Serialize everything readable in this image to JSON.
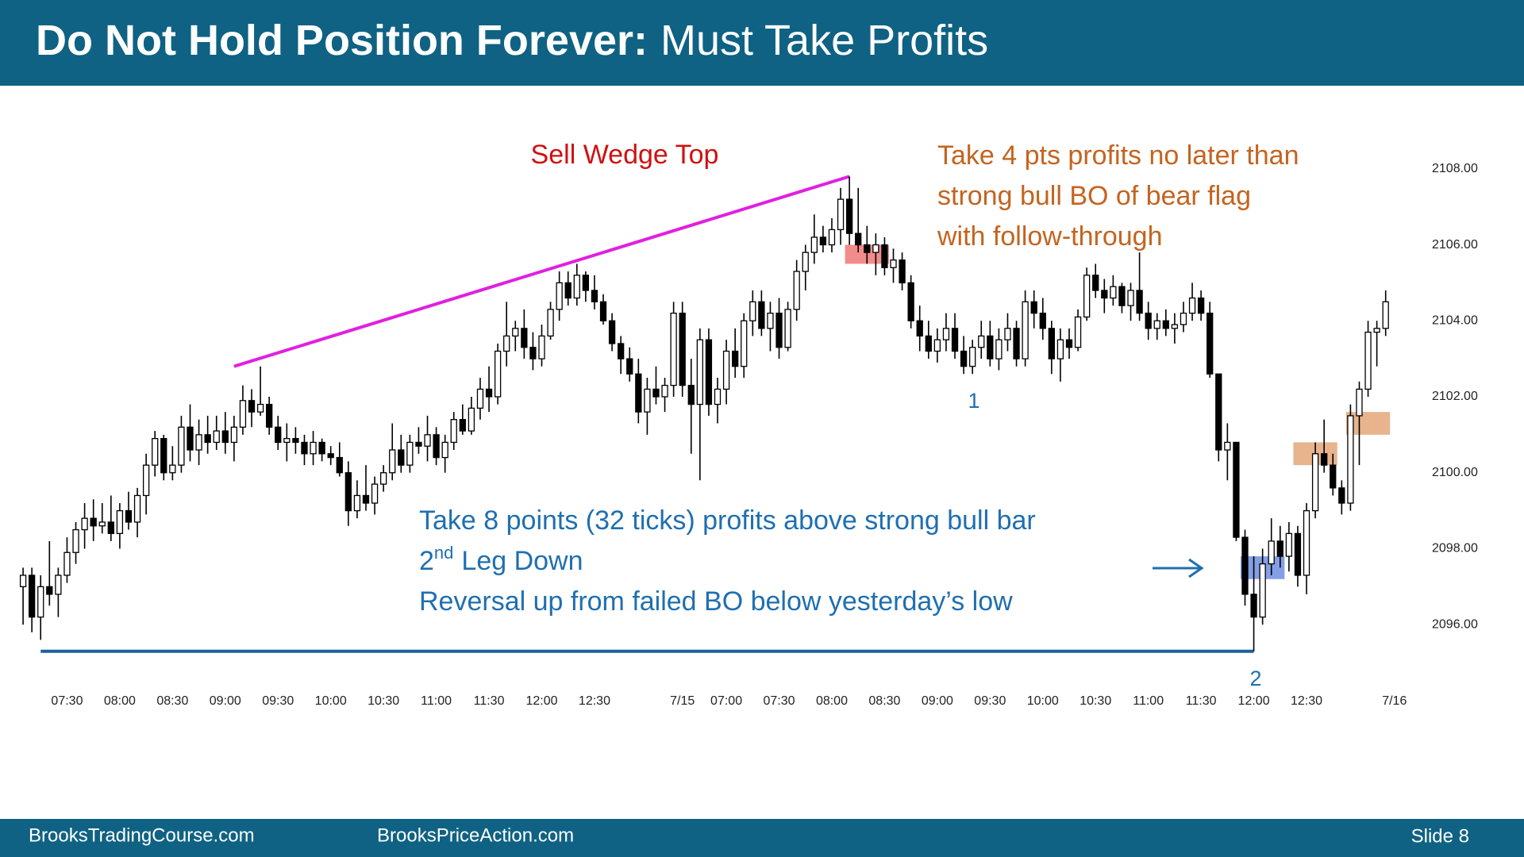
{
  "header": {
    "title_bold": "Do Not Hold Position Forever:",
    "title_rest": "Must Take Profits"
  },
  "footer": {
    "site1": "BrooksTradingCourse.com",
    "site2": "BrooksPriceAction.com",
    "slide": "Slide 8"
  },
  "chart_data": {
    "type": "candlestick",
    "ohlc": [
      [
        2097.0,
        2097.5,
        2096.0,
        2097.3
      ],
      [
        2097.3,
        2097.5,
        2095.8,
        2096.2
      ],
      [
        2096.2,
        2097.3,
        2095.6,
        2097.0
      ],
      [
        2097.0,
        2098.2,
        2096.5,
        2096.8
      ],
      [
        2096.8,
        2097.5,
        2096.2,
        2097.3
      ],
      [
        2097.3,
        2098.3,
        2097.1,
        2097.9
      ],
      [
        2097.9,
        2098.7,
        2097.6,
        2098.5
      ],
      [
        2098.5,
        2099.2,
        2098.0,
        2098.8
      ],
      [
        2098.8,
        2099.3,
        2098.2,
        2098.6
      ],
      [
        2098.6,
        2099.2,
        2098.4,
        2098.7
      ],
      [
        2098.7,
        2099.4,
        2098.2,
        2098.4
      ],
      [
        2098.4,
        2099.2,
        2098.0,
        2099.0
      ],
      [
        2099.0,
        2099.5,
        2098.5,
        2098.7
      ],
      [
        2098.7,
        2099.6,
        2098.3,
        2099.4
      ],
      [
        2099.4,
        2100.5,
        2098.9,
        2100.2
      ],
      [
        2100.2,
        2101.1,
        2099.9,
        2100.9
      ],
      [
        2100.9,
        2101.0,
        2099.8,
        2100.0
      ],
      [
        2100.0,
        2100.7,
        2099.8,
        2100.2
      ],
      [
        2100.2,
        2101.5,
        2100.0,
        2101.2
      ],
      [
        2101.2,
        2101.8,
        2100.3,
        2100.6
      ],
      [
        2100.6,
        2101.4,
        2100.2,
        2101.0
      ],
      [
        2101.0,
        2101.5,
        2100.5,
        2100.8
      ],
      [
        2100.8,
        2101.5,
        2100.6,
        2101.1
      ],
      [
        2101.1,
        2101.6,
        2100.5,
        2100.8
      ],
      [
        2100.8,
        2101.5,
        2100.3,
        2101.2
      ],
      [
        2101.2,
        2102.3,
        2101.0,
        2101.9
      ],
      [
        2101.9,
        2102.2,
        2101.2,
        2101.6
      ],
      [
        2101.6,
        2102.8,
        2101.5,
        2101.8
      ],
      [
        2101.8,
        2102.0,
        2101.0,
        2101.2
      ],
      [
        2101.2,
        2101.5,
        2100.6,
        2100.8
      ],
      [
        2100.8,
        2101.3,
        2100.3,
        2100.9
      ],
      [
        2100.9,
        2101.2,
        2100.5,
        2100.8
      ],
      [
        2100.8,
        2101.0,
        2100.2,
        2100.5
      ],
      [
        2100.5,
        2101.1,
        2100.2,
        2100.8
      ],
      [
        2100.8,
        2100.9,
        2100.3,
        2100.5
      ],
      [
        2100.5,
        2100.7,
        2100.2,
        2100.4
      ],
      [
        2100.4,
        2100.8,
        2099.9,
        2100.0
      ],
      [
        2100.0,
        2100.3,
        2098.6,
        2099.0
      ],
      [
        2099.0,
        2099.8,
        2098.8,
        2099.4
      ],
      [
        2099.4,
        2100.2,
        2099.0,
        2099.2
      ],
      [
        2099.2,
        2099.9,
        2098.9,
        2099.7
      ],
      [
        2099.7,
        2100.2,
        2099.5,
        2100.0
      ],
      [
        2100.0,
        2101.3,
        2099.8,
        2100.6
      ],
      [
        2100.6,
        2101.0,
        2100.0,
        2100.2
      ],
      [
        2100.2,
        2101.0,
        2100.0,
        2100.8
      ],
      [
        2100.8,
        2101.2,
        2100.5,
        2100.7
      ],
      [
        2100.7,
        2101.5,
        2100.3,
        2101.0
      ],
      [
        2101.0,
        2101.2,
        2100.2,
        2100.4
      ],
      [
        2100.4,
        2101.0,
        2100.0,
        2100.8
      ],
      [
        2100.8,
        2101.6,
        2100.6,
        2101.4
      ],
      [
        2101.4,
        2101.8,
        2101.0,
        2101.1
      ],
      [
        2101.1,
        2102.0,
        2101.0,
        2101.7
      ],
      [
        2101.7,
        2102.5,
        2101.4,
        2102.2
      ],
      [
        2102.2,
        2102.8,
        2101.6,
        2102.0
      ],
      [
        2102.0,
        2103.4,
        2101.8,
        2103.2
      ],
      [
        2103.2,
        2104.5,
        2102.8,
        2103.6
      ],
      [
        2103.6,
        2104.0,
        2103.2,
        2103.8
      ],
      [
        2103.8,
        2104.3,
        2103.0,
        2103.3
      ],
      [
        2103.3,
        2103.7,
        2102.7,
        2103.0
      ],
      [
        2103.0,
        2103.9,
        2102.8,
        2103.6
      ],
      [
        2103.6,
        2104.5,
        2103.5,
        2104.3
      ],
      [
        2104.3,
        2105.3,
        2104.0,
        2105.0
      ],
      [
        2105.0,
        2105.3,
        2104.4,
        2104.6
      ],
      [
        2104.6,
        2105.5,
        2104.4,
        2105.2
      ],
      [
        2105.2,
        2105.3,
        2104.5,
        2104.8
      ],
      [
        2104.8,
        2105.2,
        2104.3,
        2104.5
      ],
      [
        2104.5,
        2104.7,
        2103.9,
        2104.0
      ],
      [
        2104.0,
        2104.2,
        2103.2,
        2103.4
      ],
      [
        2103.4,
        2103.6,
        2102.6,
        2103.0
      ],
      [
        2103.0,
        2103.3,
        2102.4,
        2102.6
      ],
      [
        2102.6,
        2103.0,
        2101.3,
        2101.6
      ],
      [
        2101.6,
        2102.5,
        2101.0,
        2102.2
      ],
      [
        2102.2,
        2102.8,
        2101.8,
        2102.0
      ],
      [
        2102.0,
        2102.5,
        2101.6,
        2102.3
      ],
      [
        2102.3,
        2104.5,
        2102.0,
        2104.2
      ],
      [
        2104.2,
        2104.5,
        2102.0,
        2102.3
      ],
      [
        2102.3,
        2103.0,
        2100.5,
        2101.8
      ],
      [
        2101.8,
        2103.8,
        2099.8,
        2103.5
      ],
      [
        2103.5,
        2103.8,
        2101.5,
        2101.8
      ],
      [
        2101.8,
        2102.5,
        2101.3,
        2102.2
      ],
      [
        2102.2,
        2103.5,
        2101.8,
        2103.2
      ],
      [
        2103.2,
        2103.8,
        2102.5,
        2102.8
      ],
      [
        2102.8,
        2104.2,
        2102.5,
        2104.0
      ],
      [
        2104.0,
        2104.8,
        2103.6,
        2104.5
      ],
      [
        2104.5,
        2104.8,
        2103.6,
        2103.8
      ],
      [
        2103.8,
        2104.5,
        2103.2,
        2104.2
      ],
      [
        2104.2,
        2104.6,
        2103.0,
        2103.3
      ],
      [
        2103.3,
        2104.5,
        2103.2,
        2104.3
      ],
      [
        2104.3,
        2105.6,
        2104.0,
        2105.3
      ],
      [
        2105.3,
        2106.0,
        2104.8,
        2105.8
      ],
      [
        2105.8,
        2106.8,
        2105.5,
        2106.2
      ],
      [
        2106.2,
        2106.5,
        2105.8,
        2106.0
      ],
      [
        2106.0,
        2106.7,
        2105.8,
        2106.4
      ],
      [
        2106.4,
        2107.5,
        2106.0,
        2107.2
      ],
      [
        2107.2,
        2107.8,
        2106.0,
        2106.3
      ],
      [
        2106.3,
        2107.5,
        2105.8,
        2106.0
      ],
      [
        2106.0,
        2106.5,
        2105.5,
        2105.8
      ],
      [
        2105.8,
        2106.3,
        2105.2,
        2106.0
      ],
      [
        2106.0,
        2106.2,
        2105.2,
        2105.4
      ],
      [
        2105.4,
        2105.9,
        2105.0,
        2105.6
      ],
      [
        2105.6,
        2105.8,
        2104.8,
        2105.0
      ],
      [
        2105.0,
        2105.2,
        2103.8,
        2104.0
      ],
      [
        2104.0,
        2104.4,
        2103.2,
        2103.6
      ],
      [
        2103.6,
        2104.0,
        2103.0,
        2103.2
      ],
      [
        2103.2,
        2103.8,
        2102.9,
        2103.5
      ],
      [
        2103.5,
        2104.2,
        2103.2,
        2103.8
      ],
      [
        2103.8,
        2104.2,
        2103.0,
        2103.2
      ],
      [
        2103.2,
        2103.6,
        2102.6,
        2102.8
      ],
      [
        2102.8,
        2103.5,
        2102.6,
        2103.3
      ],
      [
        2103.3,
        2104.0,
        2103.0,
        2103.6
      ],
      [
        2103.6,
        2104.0,
        2102.8,
        2103.0
      ],
      [
        2103.0,
        2103.8,
        2102.7,
        2103.5
      ],
      [
        2103.5,
        2104.2,
        2103.2,
        2103.8
      ],
      [
        2103.8,
        2104.0,
        2102.8,
        2103.0
      ],
      [
        2103.0,
        2104.8,
        2102.8,
        2104.5
      ],
      [
        2104.5,
        2104.8,
        2103.8,
        2104.2
      ],
      [
        2104.2,
        2104.6,
        2103.5,
        2103.8
      ],
      [
        2103.8,
        2104.0,
        2102.6,
        2103.0
      ],
      [
        2103.0,
        2103.8,
        2102.4,
        2103.5
      ],
      [
        2103.5,
        2103.8,
        2103.0,
        2103.3
      ],
      [
        2103.3,
        2104.3,
        2103.2,
        2104.1
      ],
      [
        2104.1,
        2105.4,
        2104.0,
        2105.2
      ],
      [
        2105.2,
        2105.5,
        2104.6,
        2104.8
      ],
      [
        2104.8,
        2105.1,
        2104.2,
        2104.6
      ],
      [
        2104.6,
        2105.2,
        2104.4,
        2104.9
      ],
      [
        2104.9,
        2105.0,
        2104.2,
        2104.4
      ],
      [
        2104.4,
        2105.0,
        2104.0,
        2104.8
      ],
      [
        2104.8,
        2105.8,
        2104.0,
        2104.2
      ],
      [
        2104.2,
        2104.5,
        2103.5,
        2103.8
      ],
      [
        2103.8,
        2104.2,
        2103.5,
        2104.0
      ],
      [
        2104.0,
        2104.3,
        2103.6,
        2103.8
      ],
      [
        2103.8,
        2104.2,
        2103.4,
        2103.9
      ],
      [
        2103.9,
        2104.5,
        2103.7,
        2104.2
      ],
      [
        2104.2,
        2105.0,
        2104.0,
        2104.6
      ],
      [
        2104.6,
        2104.8,
        2104.0,
        2104.2
      ],
      [
        2104.2,
        2104.5,
        2102.5,
        2102.6
      ],
      [
        2102.6,
        2102.6,
        2100.3,
        2100.6
      ],
      [
        2100.6,
        2101.3,
        2099.8,
        2100.8
      ],
      [
        2100.8,
        2100.8,
        2098.2,
        2098.3
      ],
      [
        2098.3,
        2098.5,
        2096.5,
        2096.8
      ],
      [
        2096.8,
        2097.8,
        2095.3,
        2096.2
      ],
      [
        2096.2,
        2098.0,
        2096.0,
        2097.6
      ],
      [
        2097.6,
        2098.8,
        2097.3,
        2098.2
      ],
      [
        2098.2,
        2098.6,
        2097.5,
        2097.8
      ],
      [
        2097.8,
        2098.7,
        2097.4,
        2098.4
      ],
      [
        2098.4,
        2098.6,
        2097.0,
        2097.3
      ],
      [
        2097.3,
        2099.2,
        2096.8,
        2099.0
      ],
      [
        2099.0,
        2100.8,
        2098.8,
        2100.5
      ],
      [
        2100.5,
        2101.4,
        2100.0,
        2100.2
      ],
      [
        2100.2,
        2100.5,
        2099.4,
        2099.6
      ],
      [
        2099.6,
        2099.8,
        2098.9,
        2099.2
      ],
      [
        2099.2,
        2101.8,
        2099.0,
        2101.5
      ],
      [
        2101.5,
        2102.4,
        2100.2,
        2102.2
      ],
      [
        2102.2,
        2104.0,
        2102.0,
        2103.7
      ],
      [
        2103.7,
        2104.0,
        2102.8,
        2103.8
      ],
      [
        2103.8,
        2104.8,
        2103.6,
        2104.5
      ]
    ],
    "up_color": "#ffffff",
    "down_color": "#000000",
    "xlim": [
      -1,
      159
    ],
    "xticks": [
      {
        "value": 5,
        "label": "07:30"
      },
      {
        "value": 11,
        "label": "08:00"
      },
      {
        "value": 17,
        "label": "08:30"
      },
      {
        "value": 23,
        "label": "09:00"
      },
      {
        "value": 29,
        "label": "09:30"
      },
      {
        "value": 35,
        "label": "10:00"
      },
      {
        "value": 41,
        "label": "10:30"
      },
      {
        "value": 47,
        "label": "11:00"
      },
      {
        "value": 53,
        "label": "11:30"
      },
      {
        "value": 59,
        "label": "12:00"
      },
      {
        "value": 65,
        "label": "12:30"
      },
      {
        "value": 75,
        "label": "7/15"
      },
      {
        "value": 80,
        "label": "07:00"
      },
      {
        "value": 86,
        "label": "07:30"
      },
      {
        "value": 92,
        "label": "08:00"
      },
      {
        "value": 98,
        "label": "08:30"
      },
      {
        "value": 104,
        "label": "09:00"
      },
      {
        "value": 110,
        "label": "09:30"
      },
      {
        "value": 116,
        "label": "10:00"
      },
      {
        "value": 122,
        "label": "10:30"
      },
      {
        "value": 128,
        "label": "11:00"
      },
      {
        "value": 134,
        "label": "11:30"
      },
      {
        "value": 140,
        "label": "12:00"
      },
      {
        "value": 146,
        "label": "12:30"
      },
      {
        "value": 156,
        "label": "7/16"
      }
    ],
    "ylim": [
      2094.5,
      2109.5
    ],
    "yticks": [
      {
        "value": 2096,
        "label": "2096.00"
      },
      {
        "value": 2098,
        "label": "2098.00"
      },
      {
        "value": 2100,
        "label": "2100.00"
      },
      {
        "value": 2102,
        "label": "2102.00"
      },
      {
        "value": 2104,
        "label": "2104.00"
      },
      {
        "value": 2106,
        "label": "2106.00"
      },
      {
        "value": 2108,
        "label": "2108.00"
      }
    ],
    "wedge_line": {
      "x": [
        24,
        94
      ],
      "y": [
        2102.8,
        2107.8
      ],
      "color": "#e020e0"
    },
    "low_line": {
      "x": [
        2,
        140
      ],
      "y": [
        2095.3,
        2095.3
      ],
      "color": "#1f5f9f"
    },
    "highlights": [
      {
        "x": [
          93.5,
          98.5
        ],
        "y": [
          2105.5,
          2106.0
        ],
        "color": "#f07878"
      },
      {
        "x": [
          138.5,
          143.5
        ],
        "y": [
          2097.2,
          2097.8
        ],
        "color": "#6f8ee0"
      },
      {
        "x": [
          144.5,
          149.5
        ],
        "y": [
          2100.2,
          2100.8
        ],
        "color": "#e3a77a"
      },
      {
        "x": [
          150.5,
          155.5
        ],
        "y": [
          2101.0,
          2101.6
        ],
        "color": "#e3a77a"
      }
    ],
    "wedge_label": "Sell Wedge Top",
    "profit_note": [
      "Take 4 pts profits no later than",
      "strong bull BO of bear flag",
      "with follow-through"
    ],
    "blue_note": {
      "line1": "Take 8 points (32 ticks) profits above strong bull bar",
      "line2": [
        "2",
        "nd",
        "Leg Down"
      ],
      "line3": "Reversal up from failed BO below yesterday’s low"
    },
    "labels": [
      "1",
      "2"
    ]
  }
}
